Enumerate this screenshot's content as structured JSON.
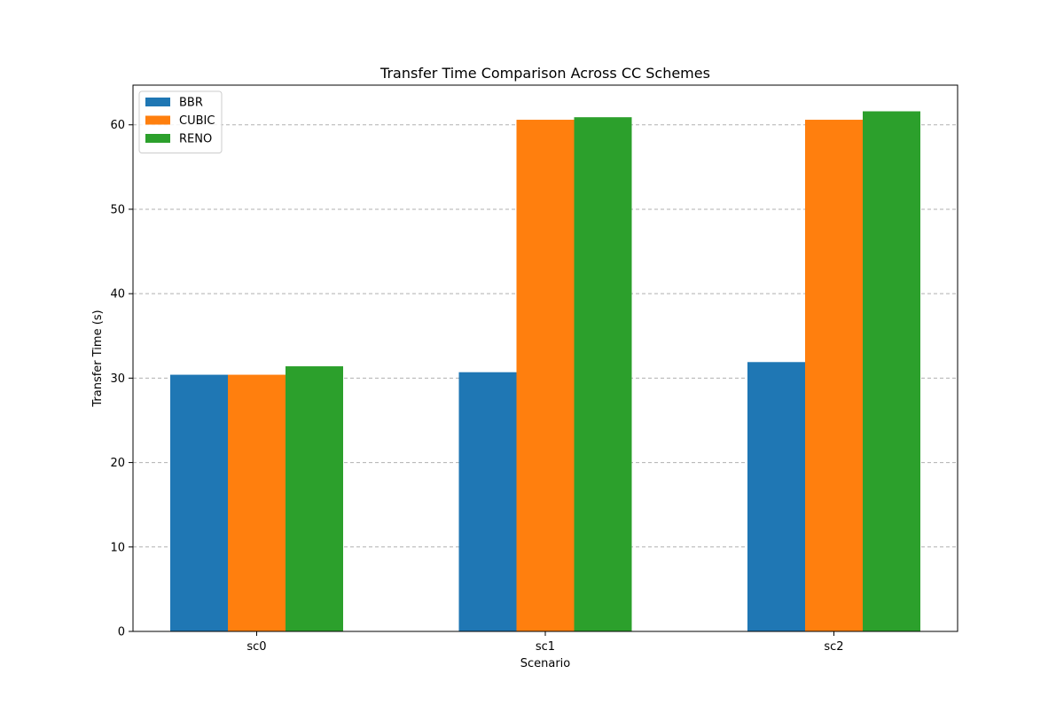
{
  "chart_data": {
    "type": "bar",
    "title": "Transfer Time Comparison Across CC Schemes",
    "xlabel": "Scenario",
    "ylabel": "Transfer Time (s)",
    "categories": [
      "sc0",
      "sc1",
      "sc2"
    ],
    "series": [
      {
        "name": "BBR",
        "color": "#1f77b4",
        "values": [
          30.4,
          30.7,
          31.9
        ]
      },
      {
        "name": "CUBIC",
        "color": "#ff7f0e",
        "values": [
          30.4,
          60.6,
          60.6
        ]
      },
      {
        "name": "RENO",
        "color": "#2ca02c",
        "values": [
          31.4,
          60.9,
          61.6
        ]
      }
    ],
    "ylim": [
      0,
      64.7
    ],
    "yticks": [
      0,
      10,
      20,
      30,
      40,
      50,
      60
    ],
    "grid": {
      "y": true,
      "x": false,
      "style": "dashed"
    },
    "legend": {
      "placement": "top-left"
    }
  }
}
